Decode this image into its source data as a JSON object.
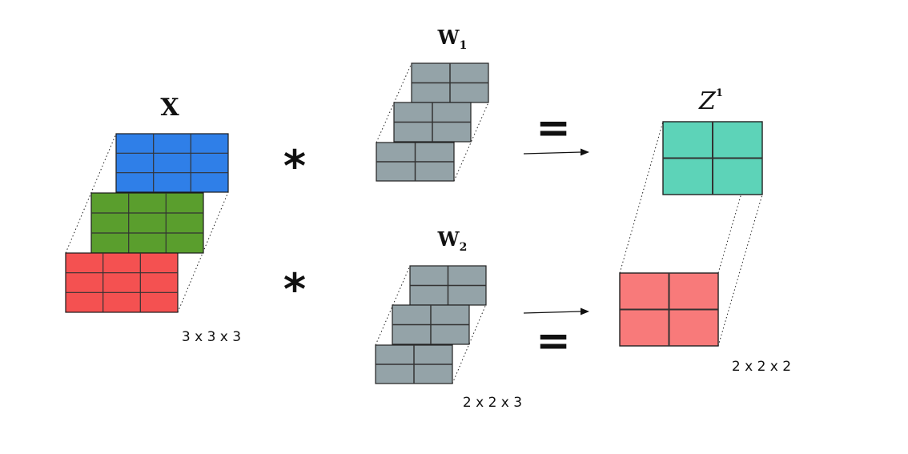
{
  "labels": {
    "input": "X",
    "filter1_base": "W",
    "filter1_sub": "1",
    "filter2_base": "W",
    "filter2_sub": "2",
    "output_base": "Z",
    "output_sup": "1",
    "conv_op": "*",
    "equals": "=",
    "input_dims": "3 x 3 x 3",
    "filter_dims": "2 x 2 x 3",
    "output_dims": "2 x 2 x 2"
  },
  "colors": {
    "input_channel_1": "#2f7fe8",
    "input_channel_2": "#5a9e2d",
    "input_channel_3": "#f45151",
    "filter": "#94a3a8",
    "output_channel_1": "#5dd3b8",
    "output_channel_2": "#f87a7a",
    "grid_line": "#333333"
  },
  "input": {
    "rows": 3,
    "cols": 3,
    "channels": 3
  },
  "filters": {
    "count": 2,
    "rows": 2,
    "cols": 2,
    "channels": 3
  },
  "output": {
    "rows": 2,
    "cols": 2,
    "channels": 2
  }
}
